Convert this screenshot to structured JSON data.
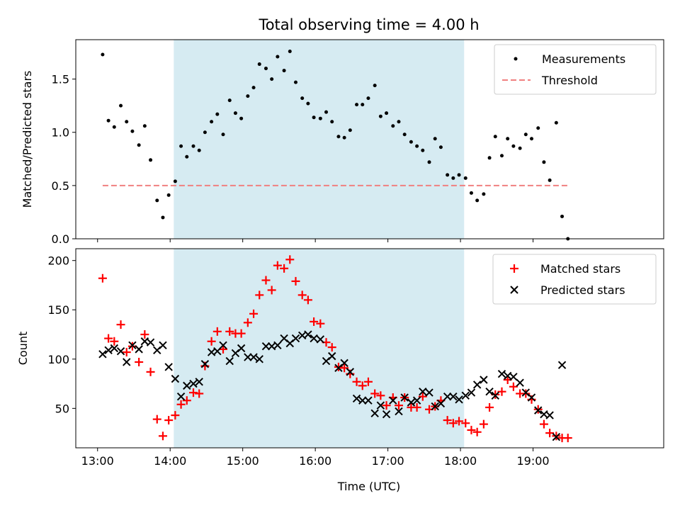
{
  "title": "Total observing time = 4.00 h",
  "colors": {
    "shade": "#add8e6",
    "threshold": "#f08080",
    "matched": "#ff0000",
    "predicted": "#000000",
    "measurement": "#000000"
  },
  "chart_data": [
    {
      "type": "scatter",
      "ylabel": "Matched/Predicted stars",
      "x_unit": "hours UTC",
      "xlim": [
        12.7,
        20.8
      ],
      "ylim": [
        0.0,
        1.87
      ],
      "yticks": [
        "0.0",
        "0.5",
        "1.0",
        "1.5"
      ],
      "shaded_interval": [
        14.05,
        18.05
      ],
      "legend": {
        "placement": "upper right",
        "entries": [
          "Measurements",
          "Threshold"
        ]
      },
      "threshold": {
        "name": "Threshold",
        "value": 0.5,
        "x_range": [
          13.07,
          19.48
        ]
      },
      "series": [
        {
          "name": "Measurements",
          "x": [
            13.07,
            13.15,
            13.23,
            13.32,
            13.4,
            13.48,
            13.57,
            13.65,
            13.73,
            13.82,
            13.9,
            13.98,
            14.07,
            14.15,
            14.23,
            14.32,
            14.4,
            14.48,
            14.57,
            14.65,
            14.73,
            14.82,
            14.9,
            14.98,
            15.07,
            15.15,
            15.23,
            15.32,
            15.4,
            15.48,
            15.57,
            15.65,
            15.73,
            15.82,
            15.9,
            15.98,
            16.07,
            16.15,
            16.23,
            16.32,
            16.4,
            16.48,
            16.57,
            16.65,
            16.73,
            16.82,
            16.9,
            16.98,
            17.07,
            17.15,
            17.23,
            17.32,
            17.4,
            17.48,
            17.57,
            17.65,
            17.73,
            17.82,
            17.9,
            17.98,
            18.07,
            18.15,
            18.23,
            18.32,
            18.4,
            18.48,
            18.57,
            18.65,
            18.73,
            18.82,
            18.9,
            18.98,
            19.07,
            19.15,
            19.23,
            19.32,
            19.4,
            19.48
          ],
          "y": [
            1.73,
            1.11,
            1.05,
            1.25,
            1.1,
            1.01,
            0.88,
            1.06,
            0.74,
            0.36,
            0.2,
            0.41,
            0.54,
            0.87,
            0.77,
            0.87,
            0.83,
            1.0,
            1.1,
            1.17,
            0.98,
            1.3,
            1.18,
            1.13,
            1.34,
            1.42,
            1.64,
            1.6,
            1.5,
            1.71,
            1.58,
            1.76,
            1.47,
            1.32,
            1.27,
            1.14,
            1.13,
            1.19,
            1.1,
            0.96,
            0.95,
            1.02,
            1.26,
            1.26,
            1.32,
            1.44,
            1.15,
            1.18,
            1.06,
            1.1,
            0.98,
            0.91,
            0.87,
            0.83,
            0.72,
            0.94,
            0.86,
            0.6,
            0.57,
            0.6,
            0.57,
            0.43,
            0.36,
            0.42,
            0.76,
            0.96,
            0.78,
            0.94,
            0.87,
            0.85,
            0.98,
            0.94,
            1.04,
            0.72,
            0.55,
            1.09,
            0.21,
            0.0
          ]
        }
      ]
    },
    {
      "type": "scatter",
      "xlabel": "Time (UTC)",
      "ylabel": "Count",
      "x_unit": "hours UTC",
      "xlim": [
        12.7,
        20.8
      ],
      "ylim": [
        10,
        212
      ],
      "yticks": [
        "50",
        "100",
        "150",
        "200"
      ],
      "xticks": [
        "13:00",
        "14:00",
        "15:00",
        "16:00",
        "17:00",
        "18:00",
        "19:00"
      ],
      "shaded_interval": [
        14.05,
        18.05
      ],
      "legend": {
        "placement": "upper right",
        "entries": [
          "Matched stars",
          "Predicted stars"
        ]
      },
      "series": [
        {
          "name": "Matched stars",
          "marker": "plus",
          "x": [
            13.07,
            13.15,
            13.23,
            13.32,
            13.4,
            13.48,
            13.57,
            13.65,
            13.73,
            13.82,
            13.9,
            13.98,
            14.07,
            14.15,
            14.23,
            14.32,
            14.4,
            14.48,
            14.57,
            14.65,
            14.73,
            14.82,
            14.9,
            14.98,
            15.07,
            15.15,
            15.23,
            15.32,
            15.4,
            15.48,
            15.57,
            15.65,
            15.73,
            15.82,
            15.9,
            15.98,
            16.07,
            16.15,
            16.23,
            16.32,
            16.4,
            16.48,
            16.57,
            16.65,
            16.73,
            16.82,
            16.9,
            16.98,
            17.07,
            17.15,
            17.23,
            17.32,
            17.4,
            17.48,
            17.57,
            17.65,
            17.73,
            17.82,
            17.9,
            17.98,
            18.07,
            18.15,
            18.23,
            18.32,
            18.4,
            18.48,
            18.57,
            18.65,
            18.73,
            18.82,
            18.9,
            18.98,
            19.07,
            19.15,
            19.23,
            19.32,
            19.4,
            19.48
          ],
          "y": [
            182,
            121,
            118,
            135,
            107,
            113,
            97,
            125,
            87,
            39,
            22,
            38,
            43,
            54,
            58,
            66,
            65,
            93,
            118,
            128,
            110,
            128,
            126,
            126,
            137,
            146,
            165,
            180,
            170,
            195,
            192,
            201,
            179,
            165,
            160,
            138,
            136,
            117,
            112,
            92,
            91,
            85,
            77,
            73,
            77,
            65,
            63,
            53,
            61,
            53,
            61,
            51,
            51,
            62,
            49,
            52,
            58,
            38,
            35,
            37,
            35,
            28,
            26,
            34,
            51,
            64,
            67,
            79,
            72,
            65,
            65,
            59,
            49,
            34,
            25,
            22,
            20,
            20
          ]
        },
        {
          "name": "Predicted stars",
          "marker": "x",
          "x": [
            13.07,
            13.15,
            13.23,
            13.32,
            13.4,
            13.48,
            13.57,
            13.65,
            13.73,
            13.82,
            13.9,
            13.98,
            14.07,
            14.15,
            14.23,
            14.32,
            14.4,
            14.48,
            14.57,
            14.65,
            14.73,
            14.82,
            14.9,
            14.98,
            15.07,
            15.15,
            15.23,
            15.32,
            15.4,
            15.48,
            15.57,
            15.65,
            15.73,
            15.82,
            15.9,
            15.98,
            16.07,
            16.15,
            16.23,
            16.32,
            16.4,
            16.48,
            16.57,
            16.65,
            16.73,
            16.82,
            16.9,
            16.98,
            17.07,
            17.15,
            17.23,
            17.32,
            17.4,
            17.48,
            17.57,
            17.65,
            17.73,
            17.82,
            17.9,
            17.98,
            18.07,
            18.15,
            18.23,
            18.32,
            18.4,
            18.48,
            18.57,
            18.65,
            18.73,
            18.82,
            18.9,
            18.98,
            19.07,
            19.15,
            19.23,
            19.32,
            19.4
          ],
          "y": [
            105,
            109,
            111,
            108,
            97,
            114,
            110,
            118,
            117,
            109,
            114,
            92,
            80,
            62,
            73,
            75,
            77,
            95,
            107,
            108,
            114,
            98,
            106,
            111,
            102,
            102,
            100,
            113,
            113,
            114,
            121,
            116,
            121,
            124,
            125,
            121,
            120,
            98,
            103,
            91,
            96,
            87,
            60,
            58,
            58,
            45,
            53,
            44,
            58,
            47,
            61,
            56,
            58,
            67,
            66,
            52,
            55,
            62,
            62,
            59,
            63,
            66,
            74,
            79,
            67,
            63,
            85,
            83,
            82,
            76,
            66,
            61,
            48,
            44,
            43,
            21,
            94
          ]
        }
      ]
    }
  ]
}
